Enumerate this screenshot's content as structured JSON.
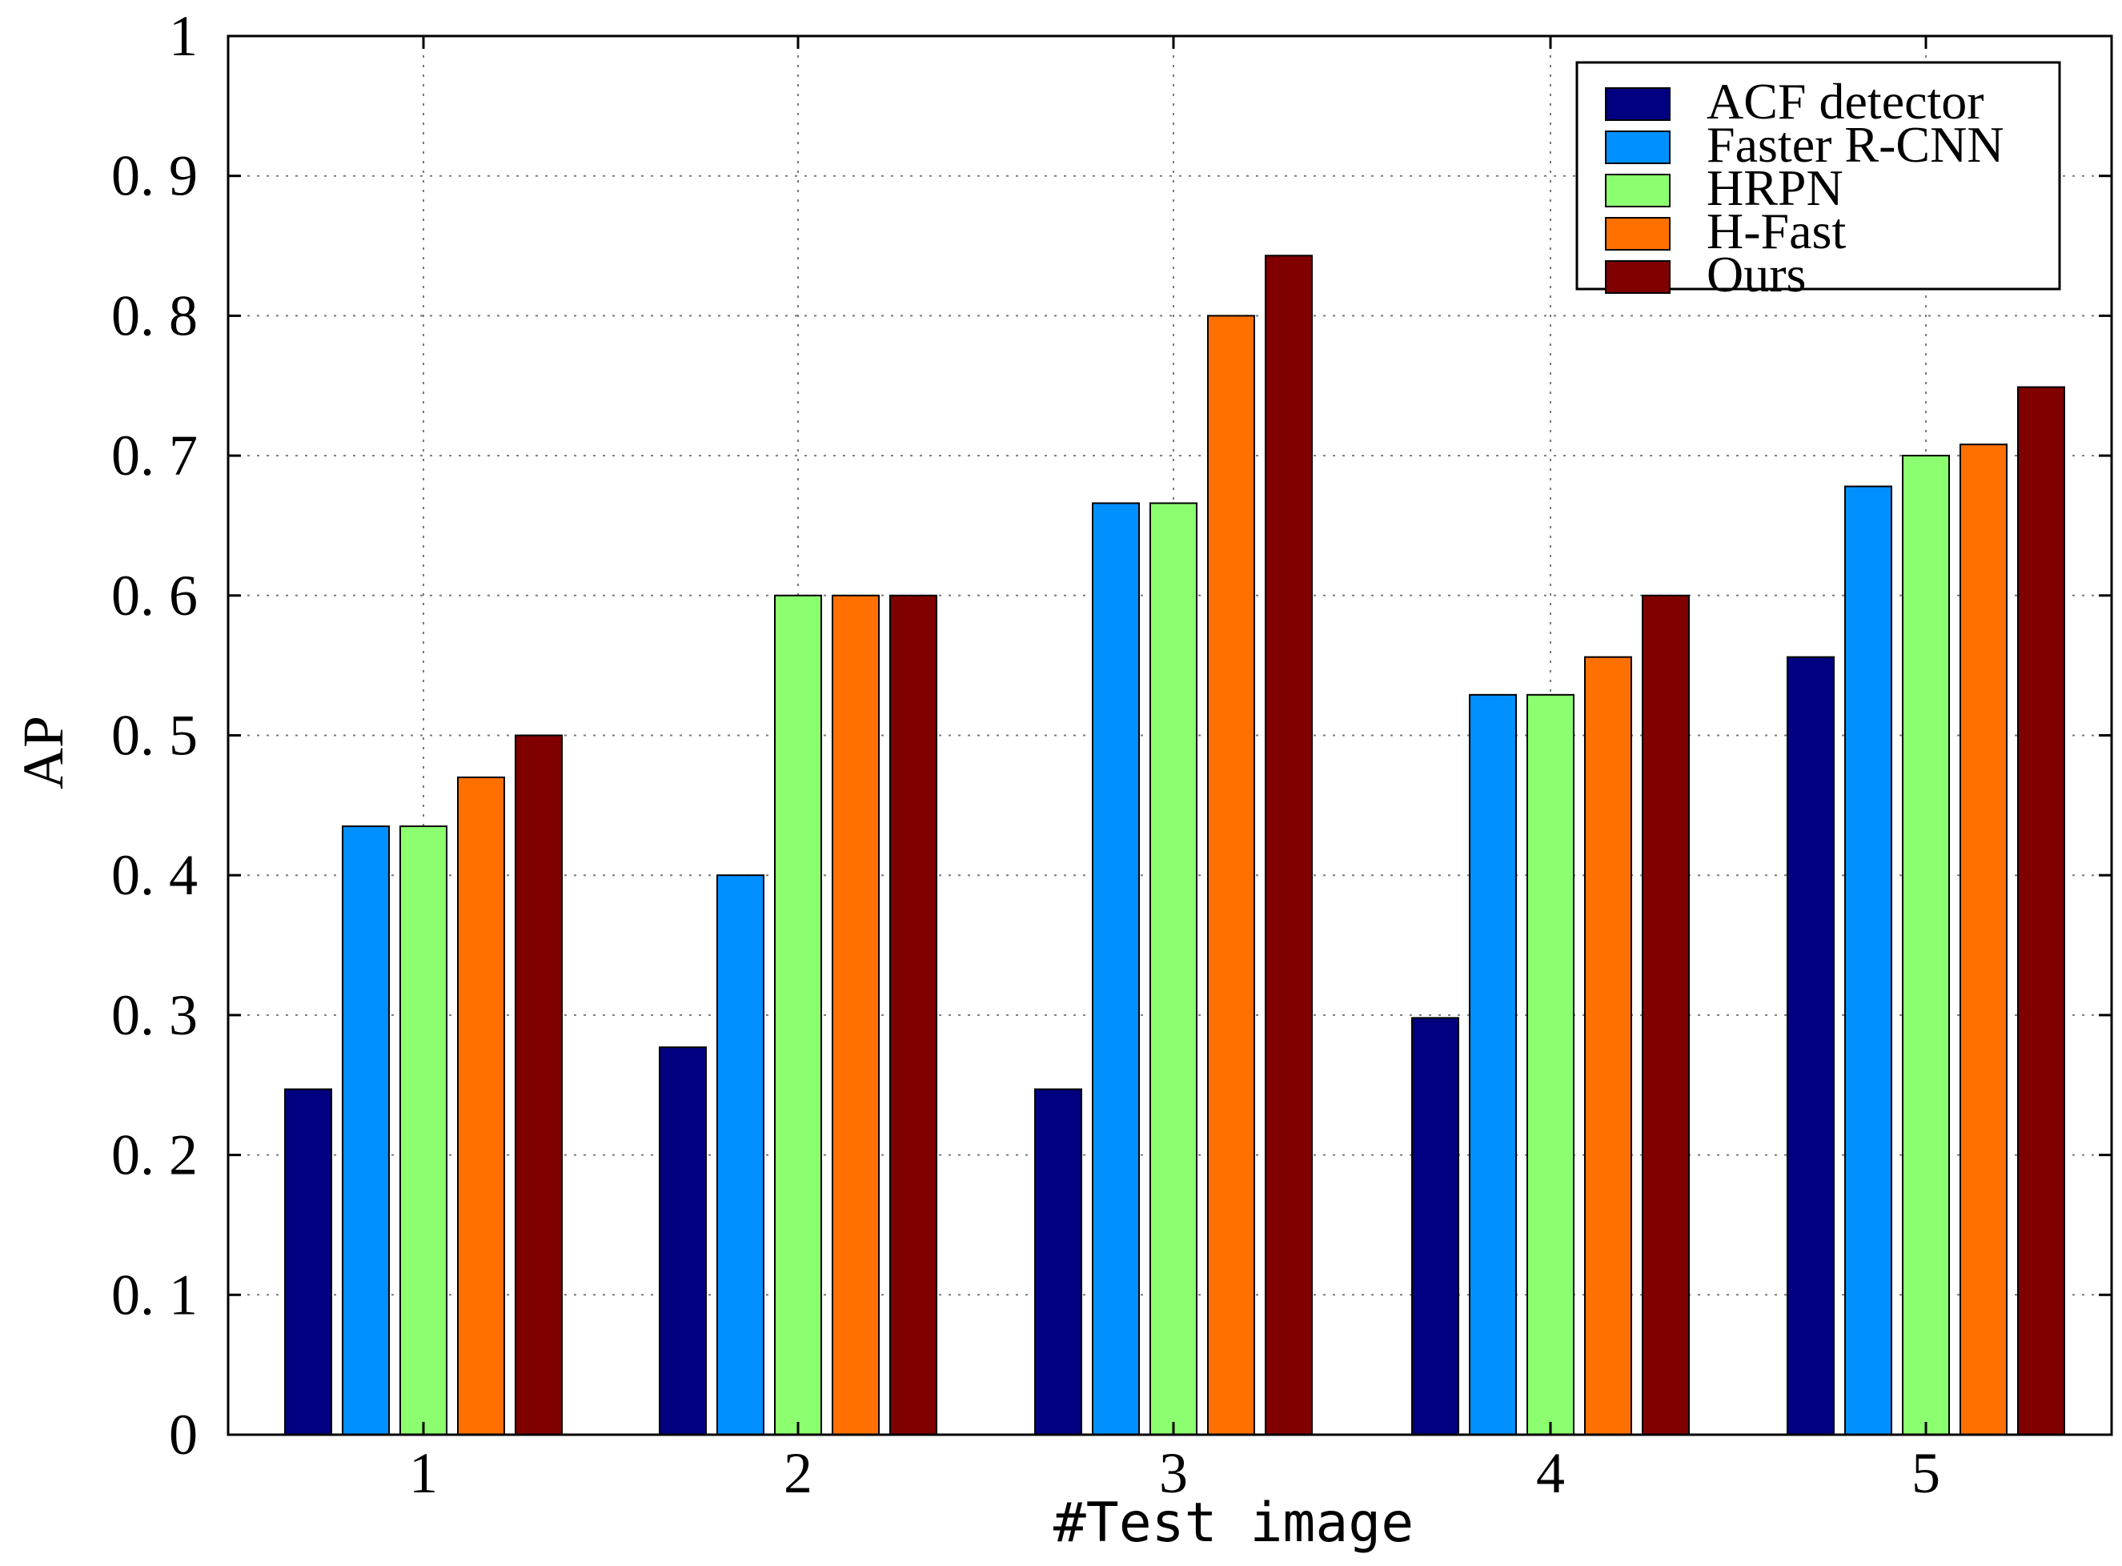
{
  "chart_data": {
    "type": "bar",
    "xlabel": "#Test image",
    "ylabel": "AP",
    "categories": [
      "1",
      "2",
      "3",
      "4",
      "5"
    ],
    "ylim": [
      0,
      1
    ],
    "yticks": [
      "0",
      "0.1",
      "0.2",
      "0.3",
      "0.4",
      "0.5",
      "0.6",
      "0.7",
      "0.8",
      "0.9",
      "1"
    ],
    "grid": true,
    "legend_position": "top-right",
    "series": [
      {
        "name": "ACF detector",
        "color": "#000080",
        "values": [
          0.247,
          0.277,
          0.247,
          0.298,
          0.556
        ]
      },
      {
        "name": "Faster R-CNN",
        "color": "#0090ff",
        "values": [
          0.435,
          0.4,
          0.666,
          0.529,
          0.678
        ]
      },
      {
        "name": "HRPN",
        "color": "#8cff70",
        "values": [
          0.435,
          0.6,
          0.666,
          0.529,
          0.7
        ]
      },
      {
        "name": "H-Fast",
        "color": "#ff7000",
        "values": [
          0.47,
          0.6,
          0.8,
          0.556,
          0.708
        ]
      },
      {
        "name": "Ours",
        "color": "#800000",
        "values": [
          0.5,
          0.6,
          0.843,
          0.6,
          0.749
        ]
      }
    ]
  }
}
